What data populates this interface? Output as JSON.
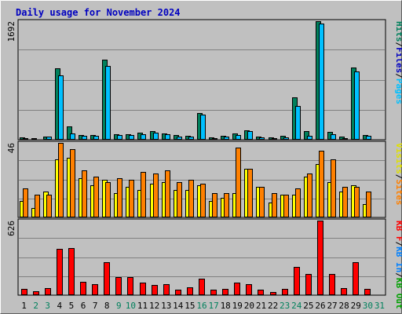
{
  "chart_data": {
    "type": "bar",
    "title": "Daily usage for November 2024",
    "categories": [
      "1",
      "2",
      "3",
      "4",
      "5",
      "6",
      "7",
      "8",
      "9",
      "10",
      "11",
      "12",
      "13",
      "14",
      "15",
      "16",
      "17",
      "18",
      "19",
      "20",
      "21",
      "22",
      "23",
      "24",
      "25",
      "26",
      "27",
      "28",
      "29",
      "30",
      "31"
    ],
    "weekend_days": [
      "2",
      "3",
      "9",
      "10",
      "16",
      "17",
      "23",
      "24",
      "30",
      "31"
    ],
    "panels": [
      {
        "max_label": "1692",
        "ylim": [
          0,
          1692
        ],
        "legend": [
          {
            "text": "Hits",
            "color": "#00805c"
          },
          {
            "text": "/",
            "color": "#000000"
          },
          {
            "text": "Files",
            "color": "#0000c0"
          },
          {
            "text": "/",
            "color": "#000000"
          },
          {
            "text": "Pages",
            "color": "#00c0ff"
          }
        ],
        "series": [
          {
            "name": "Hits",
            "color": "#00805c",
            "values": [
              36,
              18,
              50,
              1020,
              185,
              70,
              70,
              1140,
              80,
              80,
              105,
              118,
              95,
              68,
              60,
              380,
              35,
              60,
              88,
              140,
              50,
              30,
              55,
              600,
              120,
              1692,
              110,
              40,
              1030,
              70,
              0
            ]
          },
          {
            "name": "Files",
            "color": "#00c0ff",
            "values": [
              24,
              10,
              40,
              920,
              85,
              55,
              52,
              1055,
              62,
              62,
              82,
              96,
              80,
              50,
              48,
              355,
              25,
              42,
              70,
              125,
              32,
              18,
              38,
              485,
              60,
              1660,
              78,
              28,
              975,
              58,
              0
            ]
          }
        ]
      },
      {
        "max_label": "46",
        "ylim": [
          0,
          46
        ],
        "legend": [
          {
            "text": "Visits",
            "color": "#e0e000"
          },
          {
            "text": "/",
            "color": "#000000"
          },
          {
            "text": "Sites",
            "color": "#ff8000"
          }
        ],
        "series": [
          {
            "name": "Visits",
            "color": "#ffff00",
            "values": [
              10,
              6,
              16,
              36,
              37,
              24,
              20,
              23,
              15,
              19,
              17,
              21,
              22,
              17,
              17,
              20,
              10,
              12,
              15,
              30,
              19,
              9,
              14,
              14,
              25,
              33,
              22,
              16,
              20,
              8,
              0
            ]
          },
          {
            "name": "Sites",
            "color": "#ff8000",
            "values": [
              18,
              14,
              14,
              46,
              42,
              29,
              25,
              22,
              24,
              23,
              28,
              27,
              29,
              22,
              23,
              21,
              15,
              15,
              43,
              30,
              19,
              15,
              14,
              18,
              27,
              41,
              36,
              19,
              19,
              16,
              0
            ]
          }
        ]
      },
      {
        "max_label": "626",
        "ylim": [
          0,
          626
        ],
        "legend": [
          {
            "text": "KB F",
            "color": "#ff0000"
          },
          {
            "text": "/",
            "color": "#000000"
          },
          {
            "text": "KB In",
            "color": "#0080ff"
          },
          {
            "text": "/",
            "color": "#000000"
          },
          {
            "text": "KB Out",
            "color": "#00a000"
          }
        ],
        "series": [
          {
            "name": "KB F",
            "color": "#ff0000",
            "values": [
              50,
              30,
              60,
              390,
              395,
              115,
              95,
              280,
              150,
              150,
              105,
              85,
              95,
              48,
              65,
              140,
              45,
              55,
              105,
              95,
              45,
              28,
              50,
              235,
              175,
              626,
              175,
              60,
              275,
              50,
              0
            ]
          }
        ]
      }
    ]
  }
}
